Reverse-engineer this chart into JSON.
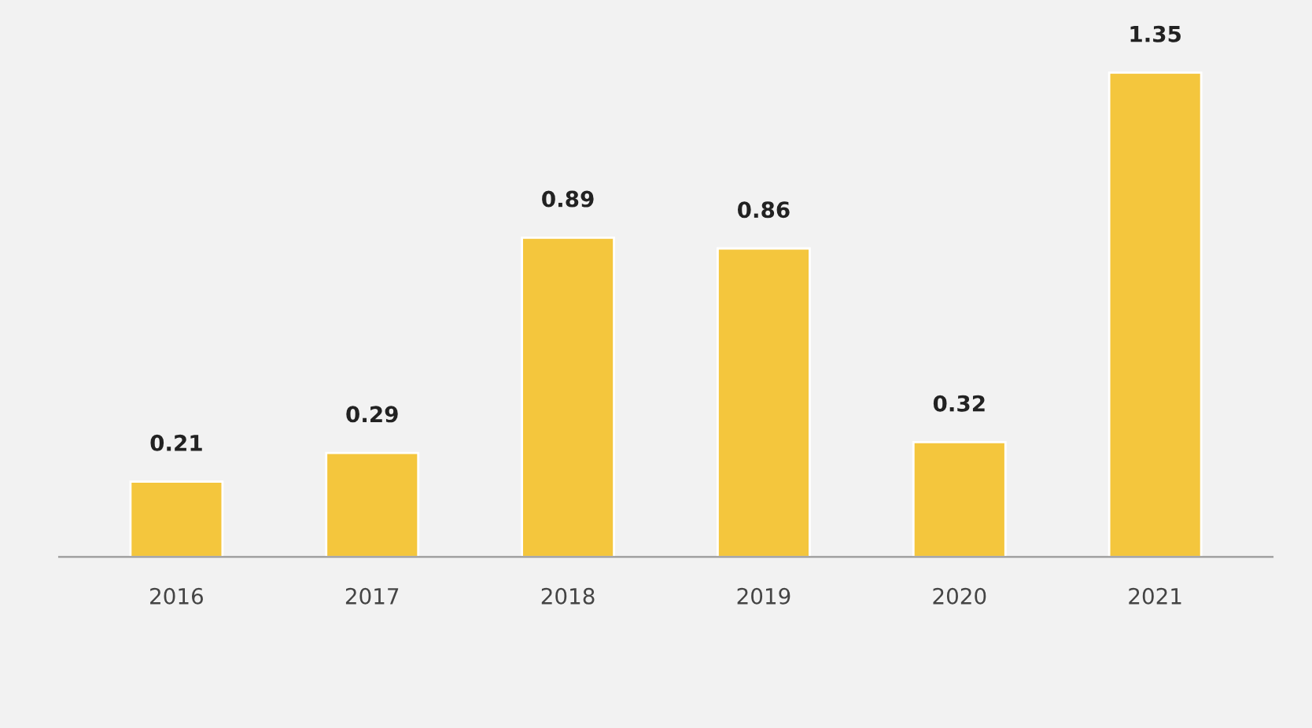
{
  "chart_data": {
    "type": "bar",
    "categories": [
      "2016",
      "2017",
      "2018",
      "2019",
      "2020",
      "2021"
    ],
    "values": [
      0.21,
      0.29,
      0.89,
      0.86,
      0.32,
      1.35
    ],
    "color": "#f4c63d",
    "data_labels": true,
    "grid": false,
    "legend": false
  }
}
